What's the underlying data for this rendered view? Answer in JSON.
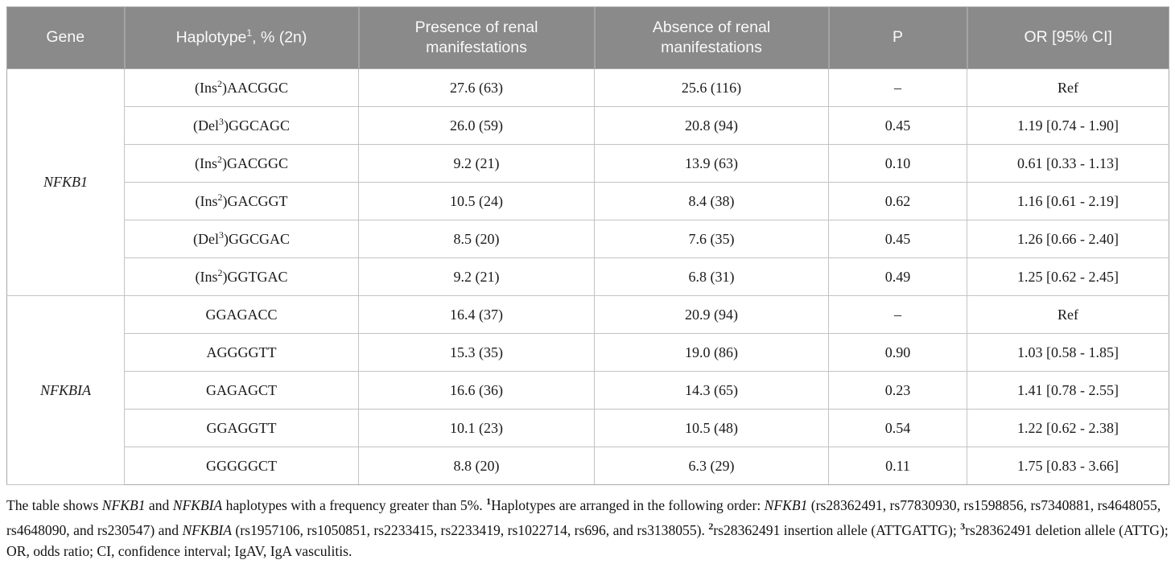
{
  "table": {
    "header": {
      "gene": "Gene",
      "haplotype_pre": "Haplotype",
      "haplotype_sup": "1",
      "haplotype_post": ", % (2n)",
      "presence": "Presence of renal manifestations",
      "absence": "Absence of renal manifestations",
      "p": "P",
      "or": "OR [95% CI]"
    },
    "groups": [
      {
        "gene": "NFKB1",
        "row_count": 6
      },
      {
        "gene": "NFKBIA",
        "row_count": 5
      }
    ],
    "rows": [
      {
        "hap_pre": "(Ins",
        "hap_sup": "2",
        "hap_post": ")AACGGC",
        "presence": "27.6 (63)",
        "absence": "25.6 (116)",
        "p": "–",
        "or": "Ref"
      },
      {
        "hap_pre": "(Del",
        "hap_sup": "3",
        "hap_post": ")GGCAGC",
        "presence": "26.0 (59)",
        "absence": "20.8 (94)",
        "p": "0.45",
        "or": "1.19 [0.74 - 1.90]"
      },
      {
        "hap_pre": "(Ins",
        "hap_sup": "2",
        "hap_post": ")GACGGC",
        "presence": "9.2 (21)",
        "absence": "13.9 (63)",
        "p": "0.10",
        "or": "0.61 [0.33 - 1.13]"
      },
      {
        "hap_pre": "(Ins",
        "hap_sup": "2",
        "hap_post": ")GACGGT",
        "presence": "10.5 (24)",
        "absence": "8.4 (38)",
        "p": "0.62",
        "or": "1.16 [0.61 - 2.19]"
      },
      {
        "hap_pre": "(Del",
        "hap_sup": "3",
        "hap_post": ")GGCGAC",
        "presence": "8.5 (20)",
        "absence": "7.6 (35)",
        "p": "0.45",
        "or": "1.26 [0.66 - 2.40]"
      },
      {
        "hap_pre": "(Ins",
        "hap_sup": "2",
        "hap_post": ")GGTGAC",
        "presence": "9.2 (21)",
        "absence": "6.8 (31)",
        "p": "0.49",
        "or": "1.25 [0.62 - 2.45]"
      },
      {
        "hap_pre": "GGAGACC",
        "hap_sup": "",
        "hap_post": "",
        "presence": "16.4 (37)",
        "absence": "20.9 (94)",
        "p": "–",
        "or": "Ref"
      },
      {
        "hap_pre": "AGGGGTT",
        "hap_sup": "",
        "hap_post": "",
        "presence": "15.3 (35)",
        "absence": "19.0 (86)",
        "p": "0.90",
        "or": "1.03 [0.58 - 1.85]"
      },
      {
        "hap_pre": "GAGAGCT",
        "hap_sup": "",
        "hap_post": "",
        "presence": "16.6 (36)",
        "absence": "14.3 (65)",
        "p": "0.23",
        "or": "1.41 [0.78 - 2.55]"
      },
      {
        "hap_pre": "GGAGGTT",
        "hap_sup": "",
        "hap_post": "",
        "presence": "10.1 (23)",
        "absence": "10.5 (48)",
        "p": "0.54",
        "or": "1.22 [0.62 - 2.38]"
      },
      {
        "hap_pre": "GGGGGCT",
        "hap_sup": "",
        "hap_post": "",
        "presence": "8.8 (20)",
        "absence": "6.3 (29)",
        "p": "0.11",
        "or": "1.75 [0.83 - 3.66]"
      }
    ]
  },
  "footnote": {
    "segments": [
      {
        "text": "The table shows "
      },
      {
        "text": "NFKB1",
        "italic": true
      },
      {
        "text": " and "
      },
      {
        "text": "NFKBIA",
        "italic": true
      },
      {
        "text": " haplotypes with a frequency greater than 5%. "
      },
      {
        "text": "1",
        "sup": true,
        "bold": true
      },
      {
        "text": "Haplotypes are arranged in the following order: "
      },
      {
        "text": "NFKB1",
        "italic": true
      },
      {
        "text": " (rs28362491, rs77830930, rs1598856, rs7340881, rs4648055, rs4648090, and rs230547) and "
      },
      {
        "text": "NFKBIA",
        "italic": true
      },
      {
        "text": " (rs1957106, rs1050851, rs2233415, rs2233419, rs1022714, rs696, and rs3138055). "
      },
      {
        "text": "2",
        "sup": true,
        "bold": true
      },
      {
        "text": "rs28362491 insertion allele (ATTGATTG); "
      },
      {
        "text": "3",
        "sup": true,
        "bold": true
      },
      {
        "text": "rs28362491 deletion allele (ATTG); OR, odds ratio; CI, confidence interval; IgAV, IgA vasculitis."
      }
    ]
  },
  "colors": {
    "header_bg": "#8a8a8a",
    "header_text": "#f9f9f9",
    "inner_border": "#c3c3c3",
    "outer_border": "#a9a9a9",
    "body_text": "#1a1a1a"
  }
}
